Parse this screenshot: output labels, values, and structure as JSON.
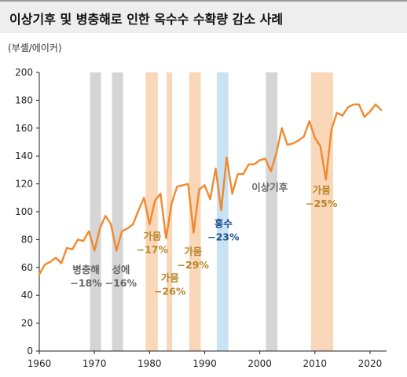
{
  "title": "이상기후 및 병충해로 인한 옥수수 수확량 감소 사례",
  "unit_label": "(부셸/에이커)",
  "chart_data": {
    "type": "line",
    "title": "이상기후 및 병충해로 인한 옥수수 수확량 감소 사례",
    "xlabel": "",
    "ylabel": "(부셸/에이커)",
    "xlim": [
      1960,
      2023
    ],
    "ylim": [
      0,
      200
    ],
    "x_ticks": [
      1960,
      1970,
      1980,
      1990,
      2000,
      2010,
      2020
    ],
    "y_ticks": [
      0,
      20,
      40,
      60,
      80,
      100,
      120,
      140,
      160,
      180,
      200
    ],
    "grid": false,
    "series_color": "#f0892e",
    "x": [
      1960,
      1961,
      1962,
      1963,
      1964,
      1965,
      1966,
      1967,
      1968,
      1969,
      1970,
      1971,
      1972,
      1973,
      1974,
      1975,
      1976,
      1977,
      1978,
      1979,
      1980,
      1981,
      1982,
      1983,
      1984,
      1985,
      1986,
      1987,
      1988,
      1989,
      1990,
      1991,
      1992,
      1993,
      1994,
      1995,
      1996,
      1997,
      1998,
      1999,
      2000,
      2001,
      2002,
      2003,
      2004,
      2005,
      2006,
      2007,
      2008,
      2009,
      2010,
      2011,
      2012,
      2013,
      2014,
      2015,
      2016,
      2017,
      2018,
      2019,
      2020,
      2021,
      2022
    ],
    "values": [
      55,
      62,
      64,
      67,
      63,
      74,
      73,
      80,
      79,
      86,
      72,
      88,
      97,
      91,
      72,
      86,
      88,
      91,
      101,
      110,
      91,
      108,
      113,
      81,
      106,
      118,
      119,
      120,
      85,
      116,
      119,
      109,
      131,
      101,
      139,
      113,
      127,
      127,
      134,
      134,
      137,
      138,
      129,
      142,
      160,
      148,
      149,
      151,
      154,
      165,
      153,
      147,
      123,
      159,
      171,
      169,
      175,
      177,
      177,
      168,
      172,
      177,
      173
    ],
    "bands": [
      {
        "start": 1969.2,
        "end": 1971.2,
        "color": "#d5d5d5"
      },
      {
        "start": 1973.2,
        "end": 1975.2,
        "color": "#d5d5d5"
      },
      {
        "start": 1979.3,
        "end": 1981.5,
        "color": "#fad7b8"
      },
      {
        "start": 1983.1,
        "end": 1984.1,
        "color": "#fad7b8"
      },
      {
        "start": 1987.2,
        "end": 1989.3,
        "color": "#fad7b8"
      },
      {
        "start": 1992.2,
        "end": 1994.3,
        "color": "#c8e3f3"
      },
      {
        "start": 2001.1,
        "end": 2003.2,
        "color": "#d5d5d5"
      },
      {
        "start": 2009.3,
        "end": 2013.3,
        "color": "#fad7b8"
      }
    ],
    "annotations": [
      {
        "line1": "병충해",
        "line2": "−18%",
        "x": 1968.5,
        "y": 56,
        "color": "#666666"
      },
      {
        "line1": "성에",
        "line2": "−16%",
        "x": 1974.8,
        "y": 56,
        "color": "#666666"
      },
      {
        "line1": "가뭄",
        "line2": "−17%",
        "x": 1980.5,
        "y": 80,
        "color": "#b8862a"
      },
      {
        "line1": "가뭄",
        "line2": "−26%",
        "x": 1983.7,
        "y": 50,
        "color": "#b8862a"
      },
      {
        "line1": "가뭄",
        "line2": "−29%",
        "x": 1987.9,
        "y": 69,
        "color": "#b8862a"
      },
      {
        "line1": "홍수",
        "line2": "−23%",
        "x": 1993.4,
        "y": 89,
        "color": "#1f4e8c"
      },
      {
        "line1": "이상기후",
        "line2": "",
        "x": 2001.8,
        "y": 115,
        "color": "#666666"
      },
      {
        "line1": "가뭄",
        "line2": "−25%",
        "x": 2011.2,
        "y": 113,
        "color": "#b8862a"
      }
    ]
  }
}
